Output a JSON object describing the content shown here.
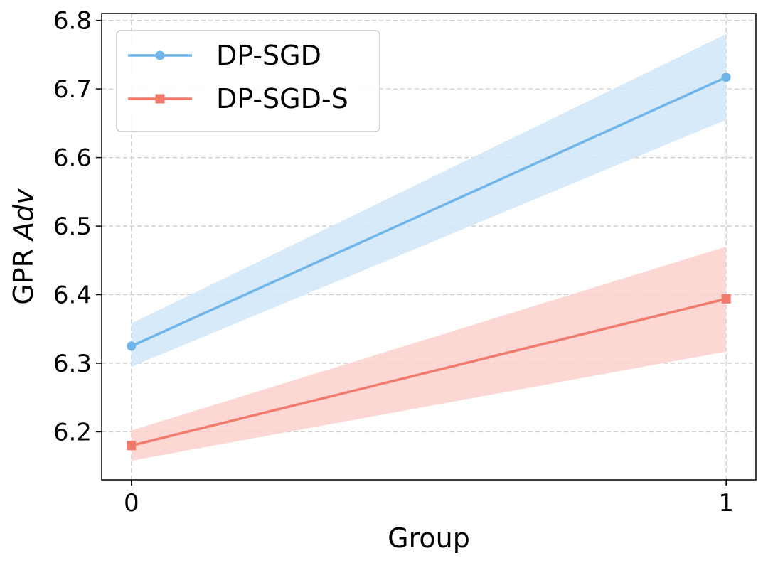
{
  "chart_data": {
    "type": "line",
    "title": "",
    "xlabel": "Group",
    "ylabel": "GPR",
    "ylabel_italic": "Adv",
    "x": [
      0,
      1
    ],
    "xticks": [
      "0",
      "1"
    ],
    "xlim": [
      -0.05,
      1.05
    ],
    "ylim": [
      6.13,
      6.81
    ],
    "yticks": [
      "6.2",
      "6.3",
      "6.4",
      "6.5",
      "6.6",
      "6.7",
      "6.8"
    ],
    "grid": true,
    "legend_position": "upper-left",
    "series": [
      {
        "name": "DP-SGD",
        "values": [
          6.325,
          6.717
        ],
        "lower": [
          6.295,
          6.655
        ],
        "upper": [
          6.358,
          6.78
        ],
        "color": "#6fb5ea",
        "fill_color": "#cfe6f8",
        "marker": "circle"
      },
      {
        "name": "DP-SGD-S",
        "values": [
          6.18,
          6.394
        ],
        "lower": [
          6.158,
          6.317
        ],
        "upper": [
          6.202,
          6.47
        ],
        "color": "#f07b6d",
        "fill_color": "#fbd0cb",
        "marker": "square"
      }
    ]
  }
}
